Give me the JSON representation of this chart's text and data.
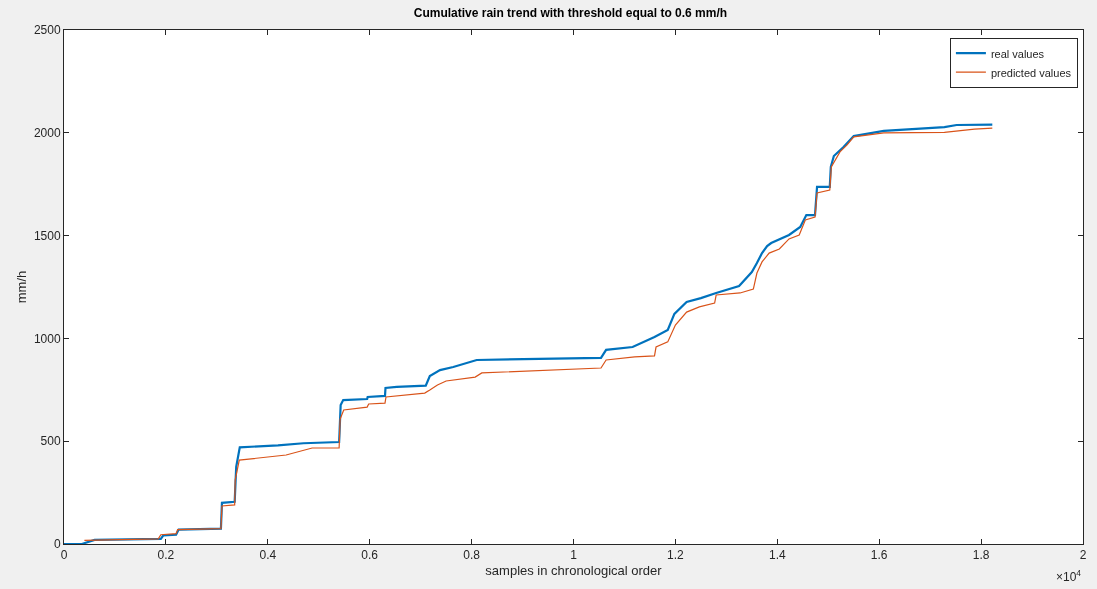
{
  "chart_data": {
    "type": "line",
    "title": "Cumulative rain trend with threshold equal to 0.6 mm/h",
    "xlabel": "samples in chronological order",
    "ylabel": "mm/h",
    "annotations": [
      "×10$^{4}$"
    ],
    "xlim": [
      0,
      2
    ],
    "xticks": [
      0,
      0.2,
      0.4,
      0.6,
      0.8,
      1,
      1.2,
      1.4,
      1.6,
      1.8,
      2
    ],
    "ylim": [
      0,
      2500
    ],
    "yticks": [
      0,
      500,
      1000,
      1500,
      2000,
      2500
    ],
    "legend": "top right",
    "marker": "none",
    "line_style": "solid",
    "series": [
      {
        "name": "real values",
        "color": "#0072bd",
        "x": [
          0,
          0.035,
          0.06,
          0.19,
          0.195,
          0.22,
          0.225,
          0.308,
          0.31,
          0.335,
          0.338,
          0.345,
          0.42,
          0.47,
          0.54,
          0.543,
          0.548,
          0.595,
          0.596,
          0.63,
          0.631,
          0.653,
          0.71,
          0.718,
          0.738,
          0.764,
          0.81,
          1.054,
          1.064,
          1.116,
          1.159,
          1.185,
          1.198,
          1.222,
          1.25,
          1.28,
          1.325,
          1.35,
          1.36,
          1.37,
          1.38,
          1.388,
          1.423,
          1.445,
          1.457,
          1.474,
          1.478,
          1.503,
          1.505,
          1.511,
          1.53,
          1.55,
          1.609,
          1.728,
          1.752,
          1.822
        ],
        "values": [
          0,
          0,
          20,
          25,
          42,
          45,
          70,
          75,
          200,
          205,
          375,
          470,
          480,
          490,
          496,
          676,
          700,
          705,
          715,
          720,
          759,
          764,
          770,
          817,
          846,
          861,
          895,
          905,
          944,
          958,
          1007,
          1041,
          1119,
          1177,
          1196,
          1221,
          1255,
          1323,
          1367,
          1415,
          1449,
          1464,
          1503,
          1542,
          1600,
          1600,
          1737,
          1737,
          1834,
          1887,
          1931,
          1984,
          2009,
          2028,
          2038,
          2040
        ]
      },
      {
        "name": "predicted values",
        "color": "#d95319",
        "x": [
          0.04,
          0.185,
          0.19,
          0.22,
          0.223,
          0.308,
          0.31,
          0.335,
          0.336,
          0.344,
          0.436,
          0.487,
          0.54,
          0.542,
          0.549,
          0.595,
          0.598,
          0.63,
          0.632,
          0.708,
          0.718,
          0.733,
          0.75,
          0.807,
          0.82,
          1.054,
          1.064,
          1.12,
          1.159,
          1.162,
          1.185,
          1.2,
          1.222,
          1.247,
          1.277,
          1.28,
          1.327,
          1.353,
          1.36,
          1.37,
          1.384,
          1.404,
          1.423,
          1.443,
          1.455,
          1.474,
          1.478,
          1.503,
          1.506,
          1.523,
          1.537,
          1.55,
          1.609,
          1.728,
          1.787,
          1.822
        ],
        "values": [
          18,
          25,
          45,
          50,
          70,
          75,
          185,
          190,
          311,
          408,
          433,
          467,
          467,
          608,
          652,
          666,
          681,
          685,
          715,
          734,
          749,
          773,
          793,
          812,
          832,
          856,
          895,
          910,
          915,
          958,
          983,
          1065,
          1128,
          1153,
          1172,
          1211,
          1221,
          1240,
          1318,
          1372,
          1415,
          1435,
          1484,
          1503,
          1576,
          1590,
          1707,
          1722,
          1834,
          1907,
          1941,
          1980,
          2000,
          2002,
          2018,
          2023
        ]
      }
    ]
  }
}
